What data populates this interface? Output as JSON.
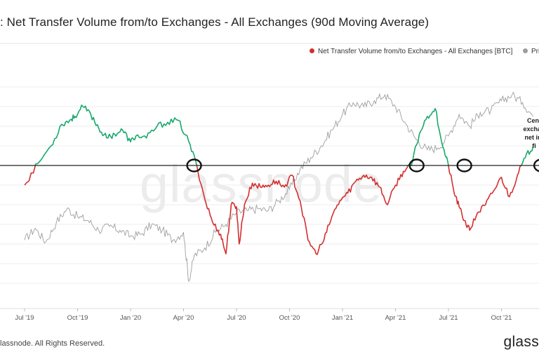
{
  "header": {
    "title": ": Net Transfer Volume from/to Exchanges - All Exchanges (90d Moving Average)"
  },
  "legend": {
    "items": [
      {
        "label": "Net Transfer Volume from/to Exchanges - All Exchanges [BTC]",
        "color": "#d32f2f"
      },
      {
        "label": "Pri",
        "color": "#9e9e9e"
      }
    ]
  },
  "watermark": "glassnode",
  "annotation": {
    "lines": [
      "Cent",
      "exchan",
      "net inf",
      "fi"
    ]
  },
  "footer": {
    "copyright": "lassnode. All Rights Reserved.",
    "brand": "glass"
  },
  "chart_data": {
    "type": "line",
    "title": ": Net Transfer Volume from/to Exchanges - All Exchanges (90d Moving Average)",
    "x_tick_labels": [
      "Jul '19",
      "Oct '19",
      "Jan '20",
      "Apr '20",
      "Jul '20",
      "Oct '20",
      "Jan '21",
      "Apr '21",
      "Jul '21",
      "Oct '21"
    ],
    "ylim": [
      -6,
      4
    ],
    "zero_line": 0,
    "colors": {
      "positive": "#17a86b",
      "negative": "#d32f2f",
      "price": "#9e9e9e",
      "zero": "#222222"
    },
    "series": [
      {
        "name": "Net Transfer Volume from/to Exchanges - All Exchanges [BTC]",
        "x": [
          0.0,
          0.25,
          0.5,
          0.7,
          0.85,
          0.95,
          1.1,
          1.25,
          1.4,
          1.55,
          1.7,
          1.85,
          2.0,
          2.1,
          2.3,
          2.5,
          2.7,
          2.9,
          3.1,
          3.25,
          3.4,
          3.55,
          3.7,
          3.8,
          3.9,
          4.0,
          4.05,
          4.15,
          4.3,
          4.45,
          4.6,
          4.75,
          4.9,
          5.05,
          5.2,
          5.35,
          5.5,
          5.65,
          5.8,
          5.95,
          6.1,
          6.25,
          6.4,
          6.55,
          6.7,
          6.85,
          7.0,
          7.15,
          7.3,
          7.45,
          7.6,
          7.75,
          7.9,
          8.0,
          8.1,
          8.2,
          8.3,
          8.4,
          8.55,
          8.7,
          8.85,
          9.0,
          9.15,
          9.3,
          9.45,
          9.6
        ],
        "values": [
          -1.0,
          0.1,
          1.0,
          2.1,
          2.3,
          2.5,
          3.0,
          2.6,
          1.9,
          1.4,
          1.6,
          1.8,
          1.2,
          1.5,
          1.4,
          2.0,
          2.2,
          2.3,
          1.2,
          0.0,
          -1.7,
          -2.9,
          -3.5,
          -4.5,
          -2.0,
          -2.1,
          -4.0,
          -2.0,
          -0.9,
          -1.1,
          -1.0,
          -0.8,
          -1.1,
          -0.5,
          -1.8,
          -3.8,
          -4.5,
          -3.8,
          -2.6,
          -1.8,
          -1.4,
          -0.8,
          -0.5,
          -0.6,
          -1.1,
          -2.0,
          -1.0,
          -0.3,
          0.0,
          1.6,
          2.5,
          2.9,
          0.9,
          0.0,
          -1.3,
          -2.1,
          -2.8,
          -3.3,
          -2.4,
          -2.0,
          -1.3,
          -0.6,
          -1.6,
          -0.5,
          0.4,
          1.0
        ]
      },
      {
        "name": "Pri",
        "x": [
          0.0,
          0.2,
          0.4,
          0.6,
          0.8,
          1.0,
          1.2,
          1.4,
          1.6,
          1.8,
          2.0,
          2.2,
          2.4,
          2.6,
          2.8,
          3.0,
          3.1,
          3.2,
          3.4,
          3.6,
          3.8,
          4.0,
          4.2,
          4.4,
          4.6,
          4.8,
          5.0,
          5.2,
          5.4,
          5.6,
          5.8,
          6.0,
          6.2,
          6.4,
          6.6,
          6.8,
          7.0,
          7.2,
          7.4,
          7.6,
          7.8,
          8.0,
          8.2,
          8.4,
          8.6,
          8.8,
          9.0,
          9.2,
          9.4,
          9.6
        ],
        "values": [
          -3.8,
          -3.2,
          -3.9,
          -2.9,
          -2.2,
          -2.6,
          -2.8,
          -3.3,
          -3.1,
          -3.3,
          -3.6,
          -3.5,
          -3.0,
          -3.3,
          -3.8,
          -3.4,
          -5.9,
          -4.6,
          -4.2,
          -3.4,
          -3.0,
          -2.4,
          -2.3,
          -2.2,
          -2.3,
          -1.8,
          -1.2,
          -0.2,
          0.4,
          1.0,
          1.8,
          2.6,
          3.2,
          3.0,
          3.3,
          3.6,
          3.0,
          2.1,
          1.3,
          0.8,
          0.9,
          1.5,
          2.6,
          2.0,
          2.7,
          2.8,
          3.3,
          3.6,
          3.2,
          2.5
        ]
      }
    ],
    "annotations": [
      {
        "type": "circle",
        "x": 3.2,
        "y": 0
      },
      {
        "type": "circle",
        "x": 7.4,
        "y": 0
      },
      {
        "type": "circle",
        "x": 8.3,
        "y": 0
      },
      {
        "type": "circle",
        "x": 9.75,
        "y": 0
      }
    ]
  }
}
